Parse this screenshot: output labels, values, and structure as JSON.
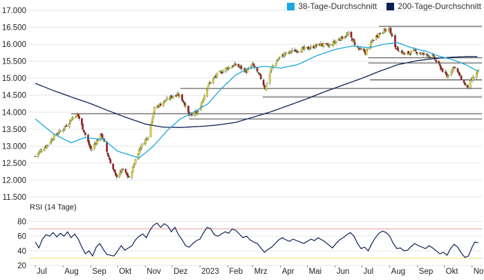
{
  "colors": {
    "up": "#e8d64a",
    "down": "#b0122e",
    "wick": "#3c5a2a",
    "ma38": "#1aa6de",
    "ma200": "#0b1f56",
    "rsi": "#0b1f56",
    "rsi_upper_line": "#e39a9a",
    "rsi_lower_line": "#e8e27a",
    "support": "#222222",
    "grid": "#e6e6e6"
  },
  "chart_data": [
    {
      "type": "candlestick",
      "legend": [
        {
          "name": "38-Tage-Durchschnitt",
          "color": "#1aa6de"
        },
        {
          "name": "200-Tage-Durchschnitt",
          "color": "#0b1f56"
        }
      ],
      "legend_position": "top-right",
      "x_tick_labels": [
        "Jul",
        "Aug",
        "Sep",
        "Okt",
        "Nov",
        "Dez",
        "2023",
        "Feb",
        "Mrz",
        "Apr",
        "Mai",
        "Jun",
        "Jul",
        "Aug",
        "Sep",
        "Okt",
        "Nov"
      ],
      "y_ticks": [
        "11.500",
        "12.000",
        "12.500",
        "13.000",
        "13.500",
        "14.000",
        "14.500",
        "15.000",
        "15.500",
        "16.000",
        "16.500",
        "17.000"
      ],
      "ylim": [
        11500,
        17000
      ],
      "grid": "horizontal",
      "price_anchor_points": [
        [
          "2022-07-01",
          12700
        ],
        [
          "2022-07-08",
          12900
        ],
        [
          "2022-07-15",
          13050
        ],
        [
          "2022-07-22",
          13300
        ],
        [
          "2022-08-01",
          13500
        ],
        [
          "2022-08-12",
          13850
        ],
        [
          "2022-08-17",
          13950
        ],
        [
          "2022-08-25",
          13400
        ],
        [
          "2022-09-01",
          12900
        ],
        [
          "2022-09-13",
          13350
        ],
        [
          "2022-09-20",
          12750
        ],
        [
          "2022-09-29",
          12100
        ],
        [
          "2022-10-07",
          12300
        ],
        [
          "2022-10-14",
          12050
        ],
        [
          "2022-10-25",
          12900
        ],
        [
          "2022-11-04",
          13300
        ],
        [
          "2022-11-11",
          14100
        ],
        [
          "2022-11-21",
          14300
        ],
        [
          "2022-11-30",
          14450
        ],
        [
          "2022-12-07",
          14550
        ],
        [
          "2022-12-14",
          14300
        ],
        [
          "2022-12-20",
          13900
        ],
        [
          "2022-12-30",
          14000
        ],
        [
          "2023-01-10",
          14800
        ],
        [
          "2023-01-20",
          15100
        ],
        [
          "2023-01-31",
          15300
        ],
        [
          "2023-02-10",
          15400
        ],
        [
          "2023-02-22",
          15200
        ],
        [
          "2023-03-01",
          15400
        ],
        [
          "2023-03-10",
          15000
        ],
        [
          "2023-03-15",
          14700
        ],
        [
          "2023-03-22",
          15300
        ],
        [
          "2023-04-01",
          15650
        ],
        [
          "2023-04-14",
          15800
        ],
        [
          "2023-04-25",
          15850
        ],
        [
          "2023-05-05",
          15900
        ],
        [
          "2023-05-15",
          16000
        ],
        [
          "2023-05-25",
          15950
        ],
        [
          "2023-06-05",
          16150
        ],
        [
          "2023-06-16",
          16300
        ],
        [
          "2023-06-26",
          15900
        ],
        [
          "2023-07-05",
          15750
        ],
        [
          "2023-07-15",
          16200
        ],
        [
          "2023-07-25",
          16400
        ],
        [
          "2023-08-01",
          16450
        ],
        [
          "2023-08-08",
          15900
        ],
        [
          "2023-08-18",
          15700
        ],
        [
          "2023-08-28",
          15800
        ],
        [
          "2023-09-08",
          15700
        ],
        [
          "2023-09-18",
          15650
        ],
        [
          "2023-09-27",
          15300
        ],
        [
          "2023-10-04",
          15050
        ],
        [
          "2023-10-12",
          15350
        ],
        [
          "2023-10-23",
          14850
        ],
        [
          "2023-10-27",
          14750
        ],
        [
          "2023-11-02",
          15000
        ],
        [
          "2023-11-08",
          15200
        ]
      ],
      "ma38_anchor_points": [
        [
          "2022-07-01",
          13800
        ],
        [
          "2022-07-22",
          13350
        ],
        [
          "2022-08-10",
          13100
        ],
        [
          "2022-08-25",
          13250
        ],
        [
          "2022-09-15",
          13200
        ],
        [
          "2022-10-01",
          12850
        ],
        [
          "2022-10-25",
          12650
        ],
        [
          "2022-11-10",
          13000
        ],
        [
          "2022-11-25",
          13450
        ],
        [
          "2022-12-10",
          13800
        ],
        [
          "2022-12-25",
          14000
        ],
        [
          "2023-01-10",
          14250
        ],
        [
          "2023-01-25",
          14700
        ],
        [
          "2023-02-10",
          15100
        ],
        [
          "2023-02-25",
          15300
        ],
        [
          "2023-03-15",
          15350
        ],
        [
          "2023-04-01",
          15300
        ],
        [
          "2023-04-20",
          15400
        ],
        [
          "2023-05-10",
          15650
        ],
        [
          "2023-06-01",
          15850
        ],
        [
          "2023-06-20",
          15950
        ],
        [
          "2023-07-10",
          15900
        ],
        [
          "2023-07-25",
          16000
        ],
        [
          "2023-08-10",
          16050
        ],
        [
          "2023-08-25",
          15900
        ],
        [
          "2023-09-10",
          15800
        ],
        [
          "2023-09-25",
          15650
        ],
        [
          "2023-10-10",
          15550
        ],
        [
          "2023-10-25",
          15400
        ],
        [
          "2023-11-08",
          15200
        ]
      ],
      "ma200_anchor_points": [
        [
          "2022-07-01",
          14850
        ],
        [
          "2022-07-20",
          14650
        ],
        [
          "2022-08-10",
          14450
        ],
        [
          "2022-09-01",
          14250
        ],
        [
          "2022-09-20",
          14050
        ],
        [
          "2022-10-10",
          13850
        ],
        [
          "2022-11-01",
          13650
        ],
        [
          "2022-11-20",
          13560
        ],
        [
          "2022-12-10",
          13550
        ],
        [
          "2023-01-01",
          13580
        ],
        [
          "2023-01-20",
          13620
        ],
        [
          "2023-02-10",
          13700
        ],
        [
          "2023-03-01",
          13850
        ],
        [
          "2023-03-20",
          14000
        ],
        [
          "2023-04-10",
          14200
        ],
        [
          "2023-05-01",
          14400
        ],
        [
          "2023-05-20",
          14600
        ],
        [
          "2023-06-10",
          14800
        ],
        [
          "2023-07-01",
          15000
        ],
        [
          "2023-07-20",
          15200
        ],
        [
          "2023-08-10",
          15400
        ],
        [
          "2023-09-01",
          15520
        ],
        [
          "2023-09-20",
          15580
        ],
        [
          "2023-10-10",
          15620
        ],
        [
          "2023-10-25",
          15640
        ],
        [
          "2023-11-08",
          15640
        ]
      ],
      "support_lines": [
        {
          "level": 16530,
          "from": "2023-07-20"
        },
        {
          "level": 15600,
          "from": "2023-07-08"
        },
        {
          "level": 15450,
          "from": "2023-07-08"
        },
        {
          "level": 14950,
          "from": "2023-07-10"
        },
        {
          "level": 14700,
          "from": "2022-12-10"
        },
        {
          "level": 14450,
          "from": "2023-03-12"
        },
        {
          "level": 13950,
          "from": "2022-08-10"
        },
        {
          "level": 13800,
          "from": "2022-12-20"
        }
      ]
    },
    {
      "type": "line",
      "title": "RSI (14 Tage)",
      "y_ticks": [
        "20",
        "40",
        "60",
        "80"
      ],
      "ylim": [
        20,
        88
      ],
      "reference_lines": [
        70,
        30
      ],
      "series": [
        {
          "name": "RSI (14 Tage)",
          "points": [
            [
              "2022-07-01",
              52
            ],
            [
              "2022-07-05",
              44
            ],
            [
              "2022-07-09",
              56
            ],
            [
              "2022-07-13",
              62
            ],
            [
              "2022-07-17",
              60
            ],
            [
              "2022-07-21",
              65
            ],
            [
              "2022-07-25",
              59
            ],
            [
              "2022-07-29",
              64
            ],
            [
              "2022-08-02",
              60
            ],
            [
              "2022-08-06",
              66
            ],
            [
              "2022-08-10",
              58
            ],
            [
              "2022-08-14",
              63
            ],
            [
              "2022-08-18",
              56
            ],
            [
              "2022-08-22",
              45
            ],
            [
              "2022-08-26",
              36
            ],
            [
              "2022-08-30",
              40
            ],
            [
              "2022-09-03",
              33
            ],
            [
              "2022-09-07",
              45
            ],
            [
              "2022-09-11",
              50
            ],
            [
              "2022-09-15",
              42
            ],
            [
              "2022-09-19",
              35
            ],
            [
              "2022-09-23",
              34
            ],
            [
              "2022-09-27",
              33
            ],
            [
              "2022-10-01",
              40
            ],
            [
              "2022-10-05",
              47
            ],
            [
              "2022-10-09",
              41
            ],
            [
              "2022-10-13",
              44
            ],
            [
              "2022-10-17",
              47
            ],
            [
              "2022-10-21",
              55
            ],
            [
              "2022-10-25",
              60
            ],
            [
              "2022-10-29",
              63
            ],
            [
              "2022-11-02",
              58
            ],
            [
              "2022-11-06",
              68
            ],
            [
              "2022-11-10",
              75
            ],
            [
              "2022-11-14",
              78
            ],
            [
              "2022-11-18",
              72
            ],
            [
              "2022-11-22",
              77
            ],
            [
              "2022-11-26",
              74
            ],
            [
              "2022-11-30",
              66
            ],
            [
              "2022-12-04",
              72
            ],
            [
              "2022-12-08",
              62
            ],
            [
              "2022-12-12",
              55
            ],
            [
              "2022-12-16",
              47
            ],
            [
              "2022-12-20",
              45
            ],
            [
              "2022-12-24",
              50
            ],
            [
              "2022-12-28",
              54
            ],
            [
              "2023-01-01",
              56
            ],
            [
              "2023-01-05",
              65
            ],
            [
              "2023-01-09",
              72
            ],
            [
              "2023-01-13",
              70
            ],
            [
              "2023-01-17",
              62
            ],
            [
              "2023-01-21",
              60
            ],
            [
              "2023-01-25",
              63
            ],
            [
              "2023-01-29",
              66
            ],
            [
              "2023-02-02",
              64
            ],
            [
              "2023-02-06",
              70
            ],
            [
              "2023-02-10",
              68
            ],
            [
              "2023-02-14",
              63
            ],
            [
              "2023-02-18",
              58
            ],
            [
              "2023-02-22",
              60
            ],
            [
              "2023-02-26",
              55
            ],
            [
              "2023-03-02",
              52
            ],
            [
              "2023-03-06",
              50
            ],
            [
              "2023-03-10",
              44
            ],
            [
              "2023-03-14",
              38
            ],
            [
              "2023-03-18",
              42
            ],
            [
              "2023-03-22",
              45
            ],
            [
              "2023-03-26",
              50
            ],
            [
              "2023-03-30",
              55
            ],
            [
              "2023-04-03",
              58
            ],
            [
              "2023-04-07",
              55
            ],
            [
              "2023-04-11",
              53
            ],
            [
              "2023-04-15",
              56
            ],
            [
              "2023-04-19",
              54
            ],
            [
              "2023-04-23",
              52
            ],
            [
              "2023-04-27",
              50
            ],
            [
              "2023-05-01",
              53
            ],
            [
              "2023-05-05",
              56
            ],
            [
              "2023-05-09",
              54
            ],
            [
              "2023-05-13",
              58
            ],
            [
              "2023-05-17",
              55
            ],
            [
              "2023-05-21",
              52
            ],
            [
              "2023-05-25",
              48
            ],
            [
              "2023-05-29",
              44
            ],
            [
              "2023-06-02",
              50
            ],
            [
              "2023-06-06",
              55
            ],
            [
              "2023-06-10",
              58
            ],
            [
              "2023-06-14",
              62
            ],
            [
              "2023-06-18",
              65
            ],
            [
              "2023-06-22",
              60
            ],
            [
              "2023-06-26",
              50
            ],
            [
              "2023-06-30",
              43
            ],
            [
              "2023-07-04",
              45
            ],
            [
              "2023-07-08",
              40
            ],
            [
              "2023-07-12",
              50
            ],
            [
              "2023-07-16",
              58
            ],
            [
              "2023-07-20",
              64
            ],
            [
              "2023-07-24",
              67
            ],
            [
              "2023-07-28",
              65
            ],
            [
              "2023-08-01",
              60
            ],
            [
              "2023-08-05",
              50
            ],
            [
              "2023-08-09",
              43
            ],
            [
              "2023-08-13",
              44
            ],
            [
              "2023-08-17",
              40
            ],
            [
              "2023-08-21",
              41
            ],
            [
              "2023-08-25",
              46
            ],
            [
              "2023-08-29",
              50
            ],
            [
              "2023-09-02",
              47
            ],
            [
              "2023-09-06",
              45
            ],
            [
              "2023-09-10",
              43
            ],
            [
              "2023-09-14",
              47
            ],
            [
              "2023-09-18",
              44
            ],
            [
              "2023-09-22",
              40
            ],
            [
              "2023-09-26",
              36
            ],
            [
              "2023-09-30",
              38
            ],
            [
              "2023-10-04",
              34
            ],
            [
              "2023-10-08",
              43
            ],
            [
              "2023-10-12",
              49
            ],
            [
              "2023-10-16",
              45
            ],
            [
              "2023-10-20",
              37
            ],
            [
              "2023-10-24",
              31
            ],
            [
              "2023-10-28",
              33
            ],
            [
              "2023-11-01",
              45
            ],
            [
              "2023-11-04",
              52
            ],
            [
              "2023-11-08",
              51
            ]
          ]
        }
      ]
    }
  ],
  "panels": {
    "rsi_title": "RSI (14 Tage)"
  }
}
